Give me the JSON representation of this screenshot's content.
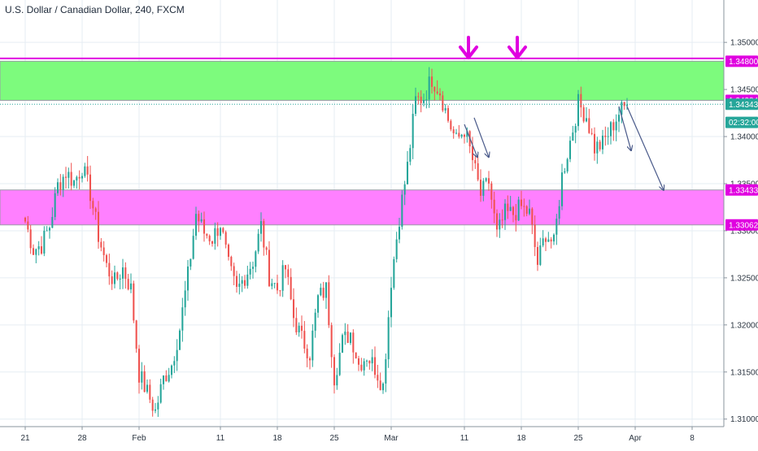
{
  "header": {
    "title": "U.S. Dollar / Canadian Dollar, 240, FXCM"
  },
  "colors": {
    "up": "#26a69a",
    "down": "#ef5350",
    "resistance_zone": "#7dfb7d",
    "support_zone": "#ff80ff",
    "magenta_line": "#e000e0",
    "grid": "#e6edf3",
    "arrow": "#4a5a8a",
    "current_price": "#26a69a"
  },
  "chart_data": {
    "type": "candlestick",
    "symbol": "U.S. Dollar / Canadian Dollar",
    "timeframe": "240",
    "source": "FXCM",
    "ylim": [
      1.3092,
      1.3545
    ],
    "y_ticks": [
      "1.35000",
      "1.34500",
      "1.34000",
      "1.33500",
      "1.33000",
      "1.32500",
      "1.32000",
      "1.31500",
      "1.31000"
    ],
    "x_ticks": [
      "21",
      "28",
      "Feb",
      "11",
      "18",
      "25",
      "Mar",
      "11",
      "18",
      "25",
      "Apr",
      "8"
    ],
    "x_tick_index": [
      0,
      7,
      14,
      24,
      31,
      38,
      45,
      54,
      61,
      68,
      75,
      82
    ],
    "price_labels": [
      {
        "text": "1.34800",
        "value": 1.348,
        "kind": "level"
      },
      {
        "text": "1.34384",
        "value": 1.34384,
        "kind": "level"
      },
      {
        "text": "1.34343",
        "value": 1.34343,
        "kind": "current"
      },
      {
        "text": "02:32:00",
        "value": 1.3415,
        "kind": "timer"
      },
      {
        "text": "1.33433",
        "value": 1.33433,
        "kind": "level"
      },
      {
        "text": "1.33062",
        "value": 1.33062,
        "kind": "level"
      }
    ],
    "zones": [
      {
        "name": "resistance",
        "from": 1.34384,
        "to": 1.348
      },
      {
        "name": "support",
        "from": 1.33062,
        "to": 1.33433
      }
    ],
    "lines": [
      1.3483
    ],
    "down_markers": [
      {
        "x": 54.5
      },
      {
        "x": 60.5
      }
    ],
    "arrows": [
      {
        "from": [
          54.0,
          1.3413
        ],
        "to": [
          55.6,
          1.3378
        ]
      },
      {
        "from": [
          55.2,
          1.342
        ],
        "to": [
          57.0,
          1.3378
        ]
      },
      {
        "from": [
          73.0,
          1.3432
        ],
        "to": [
          74.5,
          1.3385
        ]
      },
      {
        "from": [
          74.0,
          1.3432
        ],
        "to": [
          78.5,
          1.3343
        ]
      }
    ],
    "anchors": [
      [
        0,
        1.331
      ],
      [
        1,
        1.328
      ],
      [
        2,
        1.3285
      ],
      [
        3,
        1.3305
      ],
      [
        4,
        1.3348
      ],
      [
        5,
        1.3362
      ],
      [
        6,
        1.3352
      ],
      [
        7,
        1.3368
      ],
      [
        8,
        1.334
      ],
      [
        9,
        1.3295
      ],
      [
        10,
        1.3262
      ],
      [
        11,
        1.3245
      ],
      [
        12,
        1.326
      ],
      [
        13,
        1.3238
      ],
      [
        14,
        1.3148
      ],
      [
        15,
        1.3128
      ],
      [
        16,
        1.3108
      ],
      [
        17,
        1.3143
      ],
      [
        18,
        1.3158
      ],
      [
        19,
        1.3196
      ],
      [
        20,
        1.3252
      ],
      [
        21,
        1.3318
      ],
      [
        22,
        1.3298
      ],
      [
        23,
        1.3292
      ],
      [
        24,
        1.3308
      ],
      [
        25,
        1.3262
      ],
      [
        26,
        1.3235
      ],
      [
        27,
        1.3252
      ],
      [
        28,
        1.3268
      ],
      [
        29,
        1.3305
      ],
      [
        30,
        1.3252
      ],
      [
        31,
        1.3238
      ],
      [
        32,
        1.326
      ],
      [
        33,
        1.3208
      ],
      [
        34,
        1.3185
      ],
      [
        35,
        1.317
      ],
      [
        36,
        1.3228
      ],
      [
        37,
        1.3238
      ],
      [
        38,
        1.3145
      ],
      [
        39,
        1.3182
      ],
      [
        40,
        1.3192
      ],
      [
        41,
        1.3158
      ],
      [
        42,
        1.3168
      ],
      [
        43,
        1.3155
      ],
      [
        44,
        1.3135
      ],
      [
        45,
        1.3248
      ],
      [
        46,
        1.3315
      ],
      [
        47,
        1.3368
      ],
      [
        48,
        1.3438
      ],
      [
        49,
        1.3442
      ],
      [
        50,
        1.3462
      ],
      [
        51,
        1.3448
      ],
      [
        52,
        1.3418
      ],
      [
        53,
        1.3395
      ],
      [
        54,
        1.3408
      ],
      [
        55,
        1.3375
      ],
      [
        56,
        1.3338
      ],
      [
        57,
        1.3352
      ],
      [
        58,
        1.3295
      ],
      [
        59,
        1.3318
      ],
      [
        60,
        1.3318
      ],
      [
        61,
        1.3325
      ],
      [
        62,
        1.3318
      ],
      [
        63,
        1.3265
      ],
      [
        64,
        1.3298
      ],
      [
        65,
        1.3285
      ],
      [
        66,
        1.3358
      ],
      [
        67,
        1.3395
      ],
      [
        68,
        1.3435
      ],
      [
        69,
        1.3422
      ],
      [
        70,
        1.3388
      ],
      [
        71,
        1.3392
      ],
      [
        72,
        1.3408
      ],
      [
        73,
        1.3425
      ],
      [
        74,
        1.3434
      ]
    ],
    "candles_per_anchor": 3,
    "last_index": 74
  }
}
